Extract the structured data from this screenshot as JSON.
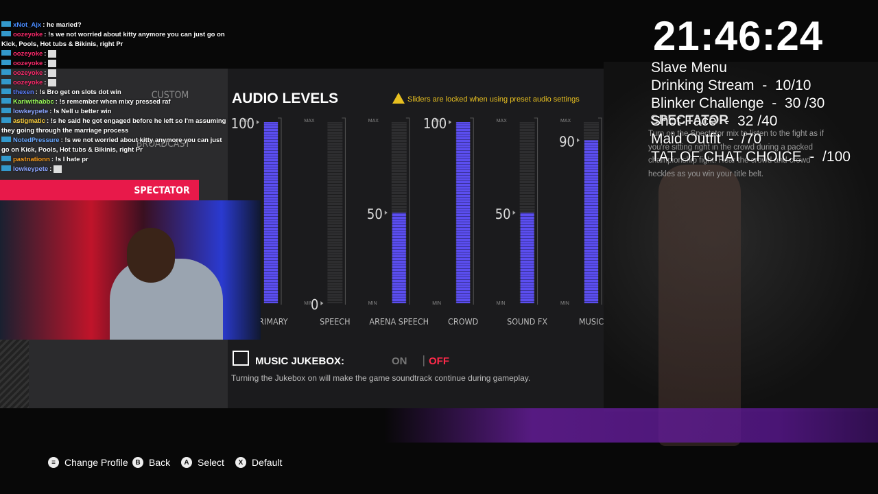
{
  "stream_overlay": {
    "clock": "21:46:24",
    "menu_title": "Slave Menu",
    "menu_items": [
      "Drinking Stream  -  10/10",
      "Blinker Challenge  -  30 /30",
      "Shot Face  -  32 /40",
      "Maid Outfit  -  /70",
      "TAT OF CHAT CHOICE  -  /100"
    ]
  },
  "chat": [
    {
      "user": "xNot_Ajx",
      "color": "#4a8cff",
      "message": "he maried?"
    },
    {
      "user": "oozeyoke",
      "color": "#ff2a6d",
      "message": "!s we not worried about kitty anymore you can just go on Kick, Pools, Hot tubs & Bikinis, right Pr"
    },
    {
      "user": "oozeyoke",
      "color": "#ff2a6d"
    },
    {
      "user": "oozeyoke",
      "color": "#ff2a6d"
    },
    {
      "user": "oozeyoke",
      "color": "#ff2a6d"
    },
    {
      "user": "oozeyoke",
      "color": "#ff2a6d"
    },
    {
      "user": "thexen",
      "color": "#5a7dff",
      "message": "!s Bro get on slots dot win"
    },
    {
      "user": "Kariwithabbc",
      "color": "#9cff5a",
      "message": "!s remember when mixy pressed raf"
    },
    {
      "user": "lowkeypete",
      "color": "#8aa4ff",
      "message": "!s Nell u better win"
    },
    {
      "user": "astigmatic",
      "color": "#ffd23f",
      "message": "!s he said he got engaged before he left so I'm assuming they going through the marriage process"
    },
    {
      "user": "NotedPressure",
      "color": "#6aa8ff",
      "message": "!s we not worried about kitty anymore you can just go on Kick, Pools, Hot tubs & Bikinis, right Pr"
    },
    {
      "user": "pastnationn",
      "color": "#ff9f1a",
      "message": "!s I hate pr"
    },
    {
      "user": "lowkeypete",
      "color": "#8aa4ff"
    }
  ],
  "audio_presets": [
    "CUSTOM",
    "BROADCAST",
    "SPECTATOR"
  ],
  "selected_preset": 2,
  "preset_description": "Turn on the Spectator mix to listen to the fight as if you're sitting right in the crowd during a packed championship fight. Hear the crowd and crowd heckles as you win your title belt.",
  "audio_levels": {
    "title": "AUDIO LEVELS",
    "warning": "Sliders are locked when using preset audio settings",
    "scale_max": {
      "value": 100,
      "label": "MAX"
    },
    "scale_min": {
      "value": 0,
      "label": "MIN"
    },
    "color": "#5b4ef0",
    "sliders": [
      {
        "name": "PRIMARY",
        "value": 100
      },
      {
        "name": "SPEECH",
        "value": 0
      },
      {
        "name": "ARENA SPEECH",
        "value": 50
      },
      {
        "name": "CROWD",
        "value": 100
      },
      {
        "name": "SOUND FX",
        "value": 50
      },
      {
        "name": "MUSIC",
        "value": 90
      }
    ]
  },
  "jukebox": {
    "title": "MUSIC JUKEBOX:",
    "options": [
      "ON",
      "OFF"
    ],
    "selected": 1,
    "description": "Turning the Jukebox on will make the game soundtrack continue during gameplay."
  },
  "controls": [
    {
      "button": "≡",
      "label": "Change Profile"
    },
    {
      "button": "B",
      "label": "Back"
    },
    {
      "button": "A",
      "label": "Select"
    },
    {
      "button": "X",
      "label": "Default"
    }
  ]
}
